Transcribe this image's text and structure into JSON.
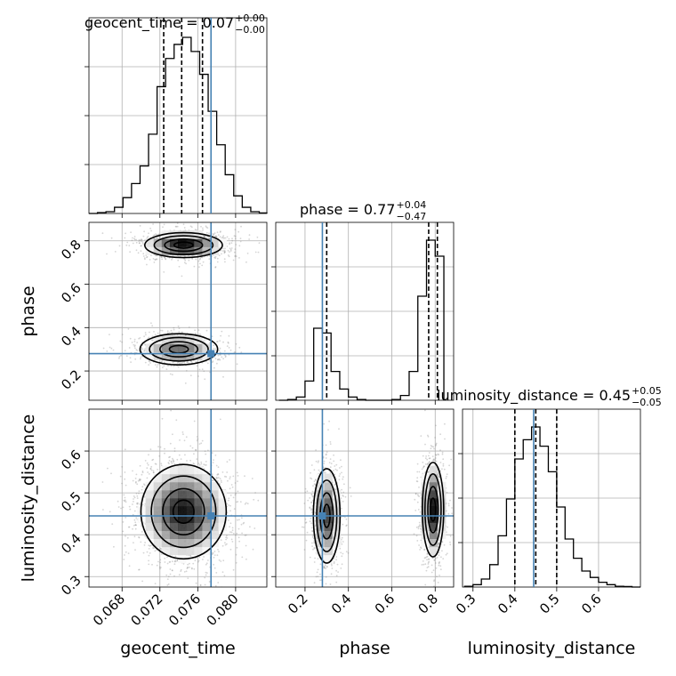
{
  "colors": {
    "truth": "#4682b4",
    "hist_line": "#000000",
    "grid": "#b0b0b0",
    "density_dark": "#000000"
  },
  "chart_data": {
    "type": "corner",
    "parameters": [
      "geocent_time",
      "phase",
      "luminosity_distance"
    ],
    "grid": true,
    "truths": {
      "geocent_time": 0.0774,
      "phase": 0.28,
      "luminosity_distance": 0.445
    },
    "titles": [
      {
        "param": "geocent_time",
        "prefix": "geocent_time = 0.07",
        "sup": "+0.00",
        "sub": "−0.00"
      },
      {
        "param": "phase",
        "prefix": "phase = 0.77",
        "sup": "+0.04",
        "sub": "−0.47"
      },
      {
        "param": "luminosity_distance",
        "prefix": "luminosity_distance = 0.45",
        "sup": "+0.05",
        "sub": "−0.05"
      }
    ],
    "axes": {
      "geocent_time": {
        "range": [
          0.0645,
          0.0833
        ],
        "ticks": [
          0.068,
          0.072,
          0.076,
          0.08
        ],
        "tick_labels": [
          "0.068",
          "0.072",
          "0.076",
          "0.080"
        ]
      },
      "phase": {
        "range": [
          0.065,
          0.885
        ],
        "ticks": [
          0.2,
          0.4,
          0.6,
          0.8
        ],
        "tick_labels": [
          "0.2",
          "0.4",
          "0.6",
          "0.8"
        ]
      },
      "luminosity_distance": {
        "range": [
          0.275,
          0.7
        ],
        "ticks": [
          0.3,
          0.4,
          0.5,
          0.6
        ],
        "tick_labels": [
          "0.3",
          "0.4",
          "0.5",
          "0.6"
        ]
      }
    },
    "axis_labels": {
      "geocent_time": "geocent_time",
      "phase": "phase",
      "luminosity_distance": "luminosity_distance"
    },
    "histograms": {
      "geocent_time": {
        "edges": [
          0.0645,
          0.0654,
          0.0663,
          0.0672,
          0.0681,
          0.069,
          0.0699,
          0.0708,
          0.0717,
          0.0726,
          0.0735,
          0.0744,
          0.0753,
          0.0762,
          0.0771,
          0.078,
          0.0789,
          0.0798,
          0.0807,
          0.0816,
          0.0825,
          0.0833
        ],
        "counts": [
          0.0,
          0.005,
          0.01,
          0.035,
          0.09,
          0.17,
          0.27,
          0.45,
          0.72,
          0.88,
          0.96,
          1.0,
          0.92,
          0.79,
          0.58,
          0.39,
          0.22,
          0.1,
          0.035,
          0.01,
          0.003
        ],
        "quantiles": [
          0.0724,
          0.0743,
          0.0765
        ]
      },
      "phase": {
        "edges": [
          0.08,
          0.12,
          0.16,
          0.2,
          0.24,
          0.28,
          0.32,
          0.36,
          0.4,
          0.44,
          0.48,
          0.52,
          0.56,
          0.6,
          0.64,
          0.68,
          0.72,
          0.76,
          0.8,
          0.84
        ],
        "counts": [
          0.0,
          0.005,
          0.02,
          0.12,
          0.45,
          0.42,
          0.18,
          0.07,
          0.02,
          0.005,
          0.0,
          0.0,
          0.0,
          0.005,
          0.03,
          0.18,
          0.65,
          1.0,
          0.9
        ],
        "quantiles": [
          0.3,
          0.77,
          0.81
        ]
      },
      "luminosity_distance": {
        "edges": [
          0.28,
          0.3,
          0.32,
          0.34,
          0.36,
          0.38,
          0.4,
          0.42,
          0.44,
          0.46,
          0.48,
          0.5,
          0.52,
          0.54,
          0.56,
          0.58,
          0.6,
          0.62,
          0.64,
          0.66,
          0.68,
          0.7
        ],
        "counts": [
          0.005,
          0.015,
          0.05,
          0.14,
          0.32,
          0.55,
          0.8,
          0.92,
          1.0,
          0.88,
          0.72,
          0.5,
          0.3,
          0.18,
          0.1,
          0.06,
          0.03,
          0.015,
          0.005,
          0.003,
          0.0
        ],
        "quantiles": [
          0.4,
          0.45,
          0.5
        ]
      }
    },
    "density_pairs": [
      {
        "x": "geocent_time",
        "y": "phase",
        "modes": [
          {
            "x": 0.0745,
            "y": 0.78,
            "sx": 0.002,
            "sy": 0.028,
            "weight": 0.62
          },
          {
            "x": 0.074,
            "y": 0.3,
            "sx": 0.002,
            "sy": 0.035,
            "weight": 0.38
          }
        ]
      },
      {
        "x": "geocent_time",
        "y": "luminosity_distance",
        "modes": [
          {
            "x": 0.0745,
            "y": 0.455,
            "sx": 0.0022,
            "sy": 0.055,
            "weight": 1.0
          }
        ]
      },
      {
        "x": "phase",
        "y": "luminosity_distance",
        "modes": [
          {
            "x": 0.3,
            "y": 0.445,
            "sx": 0.03,
            "sy": 0.055,
            "weight": 0.45
          },
          {
            "x": 0.79,
            "y": 0.46,
            "sx": 0.024,
            "sy": 0.055,
            "weight": 0.55
          }
        ]
      }
    ]
  }
}
